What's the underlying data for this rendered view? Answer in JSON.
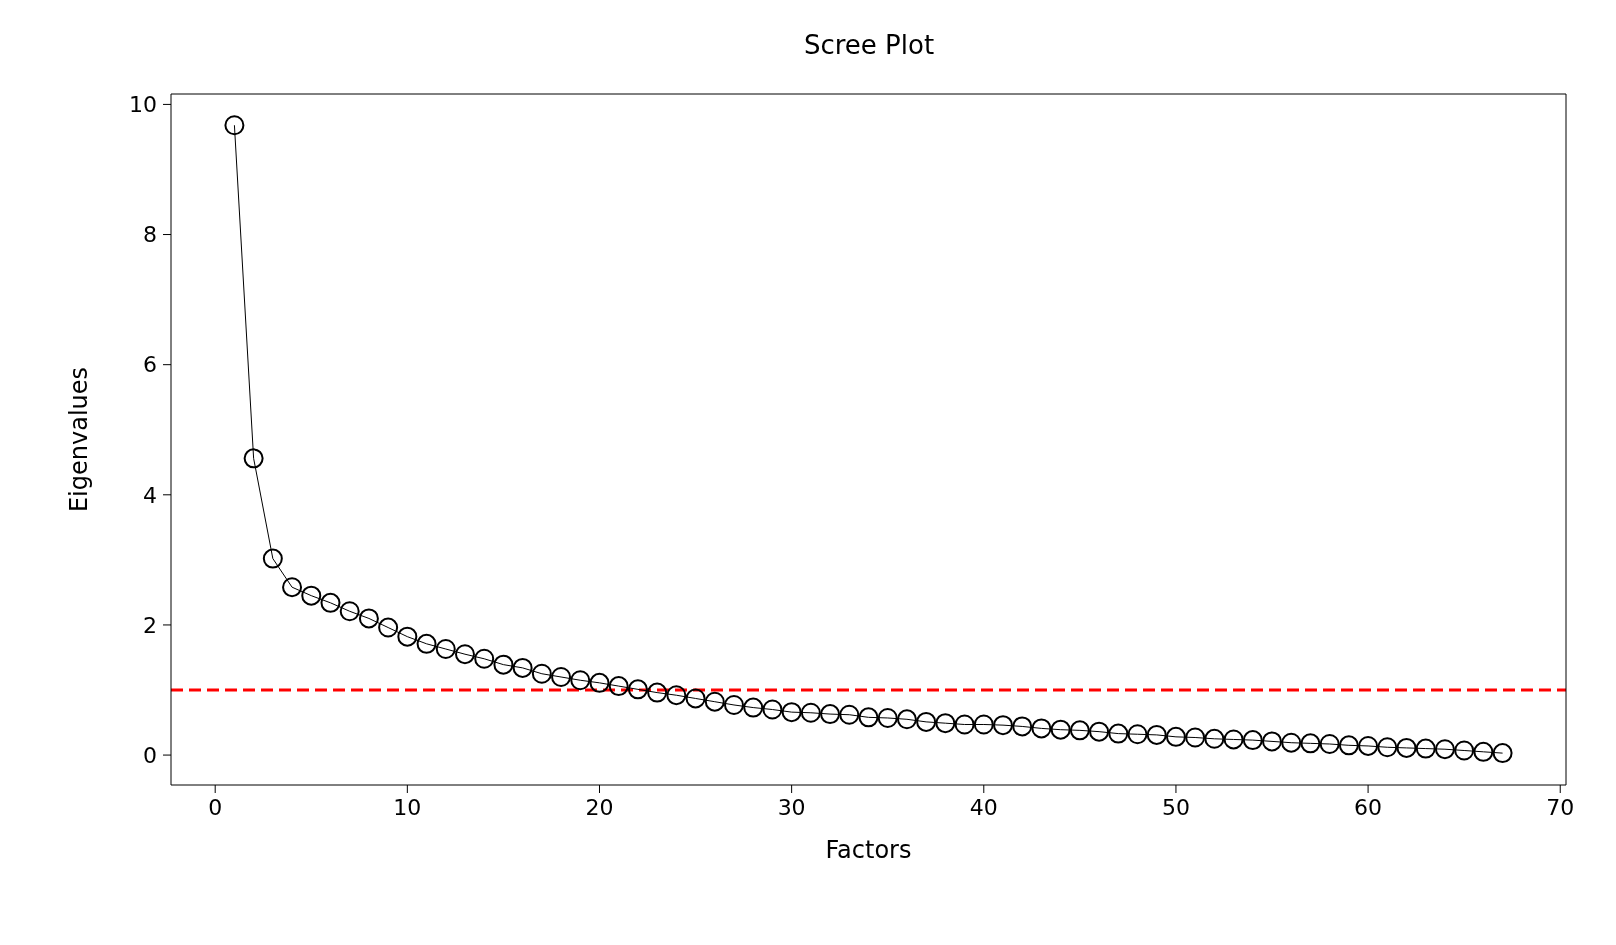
{
  "chart_data": {
    "type": "line",
    "title": "Scree Plot",
    "xlabel": "Factors",
    "ylabel": "Eigenvalues",
    "x": [
      1,
      2,
      3,
      4,
      5,
      6,
      7,
      8,
      9,
      10,
      11,
      12,
      13,
      14,
      15,
      16,
      17,
      18,
      19,
      20,
      21,
      22,
      23,
      24,
      25,
      26,
      27,
      28,
      29,
      30,
      31,
      32,
      33,
      34,
      35,
      36,
      37,
      38,
      39,
      40,
      41,
      42,
      43,
      44,
      45,
      46,
      47,
      48,
      49,
      50,
      51,
      52,
      53,
      54,
      55,
      56,
      57,
      58,
      59,
      60,
      61,
      62,
      63,
      64,
      65,
      66,
      67
    ],
    "series": [
      {
        "color": "#000000",
        "values": [
          9.68,
          4.56,
          3.02,
          2.58,
          2.45,
          2.34,
          2.21,
          2.1,
          1.96,
          1.82,
          1.71,
          1.63,
          1.55,
          1.48,
          1.39,
          1.34,
          1.25,
          1.2,
          1.15,
          1.11,
          1.06,
          1.01,
          0.96,
          0.92,
          0.87,
          0.82,
          0.77,
          0.73,
          0.7,
          0.66,
          0.65,
          0.63,
          0.62,
          0.58,
          0.57,
          0.55,
          0.51,
          0.49,
          0.47,
          0.47,
          0.46,
          0.44,
          0.41,
          0.39,
          0.38,
          0.36,
          0.33,
          0.32,
          0.31,
          0.28,
          0.27,
          0.25,
          0.24,
          0.23,
          0.21,
          0.19,
          0.18,
          0.17,
          0.15,
          0.14,
          0.12,
          0.11,
          0.1,
          0.09,
          0.07,
          0.05,
          0.03
        ]
      }
    ],
    "xlim": [
      -2.3,
      70.3
    ],
    "xticks": [
      0,
      10,
      20,
      30,
      40,
      50,
      60,
      70
    ],
    "ylim": [
      -0.46,
      10.16
    ],
    "yticks": [
      0,
      2,
      4,
      6,
      8,
      10
    ],
    "ref_lines": [
      {
        "axis": "y",
        "value": 1,
        "color": "#ff0000",
        "line_style": "dashed"
      }
    ],
    "marker": "circle",
    "line_style": "solid",
    "grid": false
  }
}
